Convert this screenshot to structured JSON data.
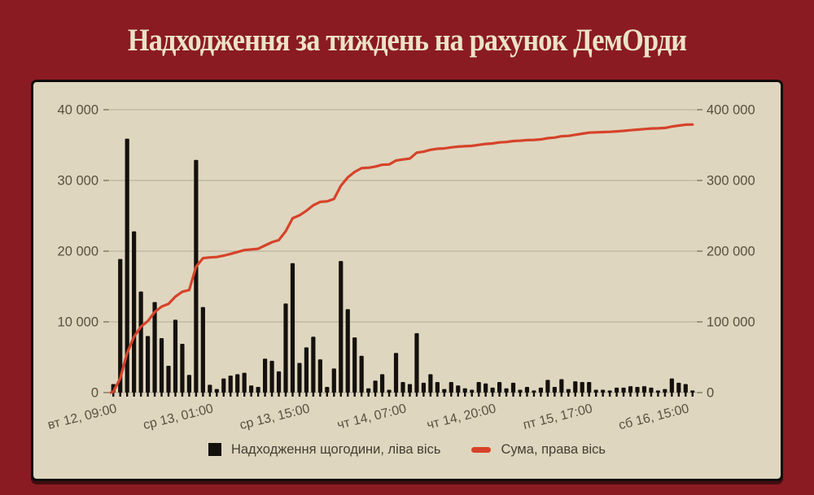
{
  "title": "Надходження за тиждень на рахунок ДемОрди",
  "colors": {
    "page_background": "#8a1b23",
    "panel_background": "#dfd6bf",
    "panel_border": "#0e0b09",
    "gridline": "#b1a995",
    "tick_mark": "#837b68",
    "axis_text": "#57503e",
    "bar": "#14110d",
    "line": "#d6432a",
    "title_text": "#ece2c8",
    "legend_text": "#443f32"
  },
  "legend": {
    "items": [
      {
        "swatch": "black-square",
        "label": "Надходження щогодини, ліва вісь"
      },
      {
        "swatch": "red-dash",
        "label": "Сума, права вісь"
      }
    ]
  },
  "chart_data": {
    "type": "bar",
    "subtype": "bar-plus-cumulative-line-combo",
    "grid": "horizontal-only",
    "legend_position": "bottom-center",
    "left_axis": {
      "applies_to": "Надходження щогодини",
      "min": 0,
      "max": 40000,
      "tick_values": [
        0,
        10000,
        20000,
        30000,
        40000
      ],
      "tick_labels": [
        "0",
        "10 000",
        "20 000",
        "30 000",
        "40 000"
      ]
    },
    "right_axis": {
      "applies_to": "Сума",
      "min": 0,
      "max": 400000,
      "tick_values": [
        0,
        100000,
        200000,
        300000,
        400000
      ],
      "tick_labels": [
        "0",
        "100 000",
        "200 000",
        "300 000",
        "400 000"
      ]
    },
    "x_axis": {
      "kind": "hourly-categories",
      "labels_rotation_deg": -14,
      "labels": [
        {
          "index": 0,
          "label": "вт 12, 09:00"
        },
        {
          "index": 14,
          "label": "ср 13, 01:00"
        },
        {
          "index": 28,
          "label": "ср 13, 15:00"
        },
        {
          "index": 42,
          "label": "чт 14, 07:00"
        },
        {
          "index": 55,
          "label": "чт 14, 20:00"
        },
        {
          "index": 69,
          "label": "пт 15, 17:00"
        },
        {
          "index": 83,
          "label": "сб 16, 15:00"
        }
      ]
    },
    "series": [
      {
        "name": "Надходження щогодини, ліва вісь",
        "type": "bar",
        "axis": "left",
        "values": [
          1200,
          18900,
          35900,
          22800,
          14300,
          8000,
          12800,
          7700,
          3800,
          10300,
          6900,
          2500,
          32900,
          12100,
          1100,
          500,
          2000,
          2400,
          2600,
          2800,
          1000,
          800,
          4800,
          4500,
          3000,
          12600,
          18300,
          4200,
          6400,
          7900,
          4700,
          800,
          3400,
          18600,
          11800,
          7800,
          5200,
          600,
          1700,
          2600,
          400,
          5600,
          1500,
          1200,
          8400,
          1400,
          2600,
          1500,
          500,
          1500,
          1000,
          600,
          400,
          1500,
          1300,
          700,
          1500,
          600,
          1400,
          400,
          800,
          300,
          700,
          1800,
          800,
          1900,
          500,
          1600,
          1500,
          1500,
          400,
          400,
          300,
          700,
          700,
          900,
          800,
          900,
          700,
          300,
          500,
          2000,
          1400,
          1200,
          300
        ]
      },
      {
        "name": "Сума, права вісь",
        "type": "line",
        "axis": "right",
        "derivation": "cumulative-sum-of-bar-series",
        "approx_final_value": 379000
      }
    ]
  }
}
